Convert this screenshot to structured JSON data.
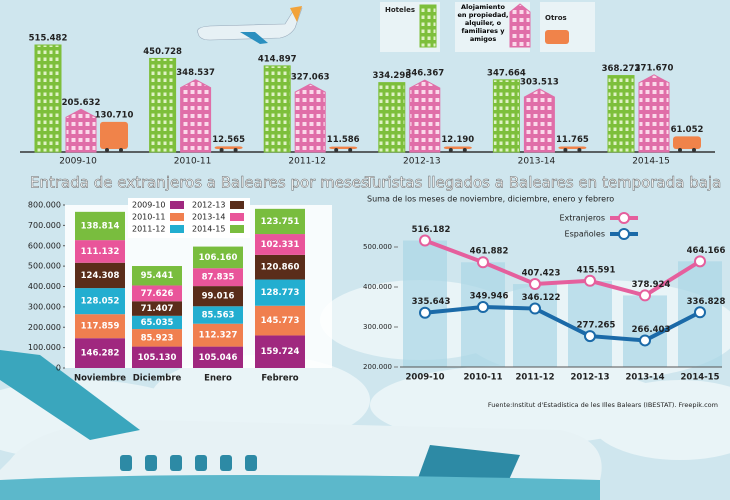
{
  "chart_data": [
    {
      "type": "pictogram",
      "categories": [
        "2009-10",
        "2010-11",
        "2011-12",
        "2012-13",
        "2013-14",
        "2014-15"
      ],
      "series": [
        {
          "name": "Hoteles",
          "color": "#7dbf3b",
          "values": [
            515482,
            450728,
            414897,
            334298,
            347664,
            368272
          ],
          "value_labels": [
            "515.482",
            "450.728",
            "414.897",
            "334.298",
            "347.664",
            "368.272"
          ]
        },
        {
          "name": "Alojamiento en propiedad, alquiler, o familiares y amigos",
          "color": "#e06ea8",
          "values": [
            205632,
            348537,
            327063,
            346367,
            303513,
            371670
          ],
          "value_labels": [
            "205.632",
            "348.537",
            "327.063",
            "346.367",
            "303.513",
            "371.670"
          ]
        },
        {
          "name": "Otros",
          "color": "#f0834a",
          "values": [
            130710,
            12565,
            11586,
            12190,
            11765,
            61052
          ],
          "value_labels": [
            "130.710",
            "12.565",
            "11.586",
            "12.190",
            "11.765",
            "61.052"
          ]
        }
      ]
    },
    {
      "type": "stacked_bar",
      "title": "Entrada de extranjeros a Baleares por meses",
      "categories": [
        "Noviembre",
        "Diciembre",
        "Enero",
        "Febrero"
      ],
      "ylim": [
        0,
        800000
      ],
      "yticks": [
        0,
        {
          "value": 100000,
          "label": "100.000"
        },
        {
          "value": 200000,
          "label": "200.000"
        },
        {
          "value": 300000,
          "label": "300.000"
        },
        {
          "value": 400000,
          "label": "400.000"
        },
        {
          "value": 500000,
          "label": "500.000"
        },
        {
          "value": 600000,
          "label": "600.000"
        },
        {
          "value": 700000,
          "label": "700.000"
        },
        {
          "value": 800000,
          "label": "800.000"
        }
      ],
      "series": [
        {
          "name": "2009-10",
          "color": "#a0287f",
          "values": [
            146282,
            105130,
            105046,
            159724
          ],
          "value_labels": [
            "146.282",
            "105.130",
            "105.046",
            "159.724"
          ]
        },
        {
          "name": "2010-11",
          "color": "#f07f4f",
          "values": [
            117859,
            85923,
            112327,
            145773
          ],
          "value_labels": [
            "117.859",
            "85.923",
            "112.327",
            "145.773"
          ]
        },
        {
          "name": "2011-12",
          "color": "#23aed0",
          "values": [
            128052,
            65035,
            85563,
            128773
          ],
          "value_labels": [
            "128.052",
            "65.035",
            "85.563",
            "128.773"
          ]
        },
        {
          "name": "2012-13",
          "color": "#5a2d1a",
          "values": [
            124308,
            71407,
            99016,
            120860
          ],
          "value_labels": [
            "124.308",
            "71.407",
            "99.016",
            "120.860"
          ]
        },
        {
          "name": "2013-14",
          "color": "#e9559a",
          "values": [
            111132,
            77626,
            87835,
            102331
          ],
          "value_labels": [
            "111.132",
            "77.626",
            "87.835",
            "102.331"
          ]
        },
        {
          "name": "2014-15",
          "color": "#79bd3e",
          "values": [
            138814,
            95441,
            106160,
            123751
          ],
          "value_labels": [
            "138.814",
            "95.441",
            "106.160",
            "123.751"
          ]
        }
      ]
    },
    {
      "type": "line",
      "title": "Turistas llegados a Baleares en temporada baja",
      "subtitle": "Suma de los meses de noviembre, diciembre, enero y febrero",
      "categories": [
        "2009-10",
        "2010-11",
        "2011-12",
        "2012-13",
        "2013-14",
        "2014-15"
      ],
      "ylim": [
        200000,
        580000
      ],
      "yticks": [
        {
          "value": 200000,
          "label": "200.000"
        },
        {
          "value": 300000,
          "label": "300.000"
        },
        {
          "value": 400000,
          "label": "400.000"
        },
        {
          "value": 500000,
          "label": "500.000"
        }
      ],
      "series": [
        {
          "name": "Extranjeros",
          "color": "#e55f9d",
          "values": [
            516182,
            461882,
            407423,
            415591,
            378924,
            464166
          ],
          "value_labels": [
            "516.182",
            "461.882",
            "407.423",
            "415.591",
            "378.924",
            "464.166"
          ]
        },
        {
          "name": "Españoles",
          "color": "#1b6aa8",
          "values": [
            335643,
            349946,
            346122,
            277265,
            266403,
            336828
          ],
          "value_labels": [
            "335.643",
            "349.946",
            "346.122",
            "277.265",
            "266.403",
            "336.828"
          ]
        }
      ],
      "source": "Fuente:Institut d'Estadística de les Illes Balears (IBESTAT). Freepik.com"
    }
  ]
}
